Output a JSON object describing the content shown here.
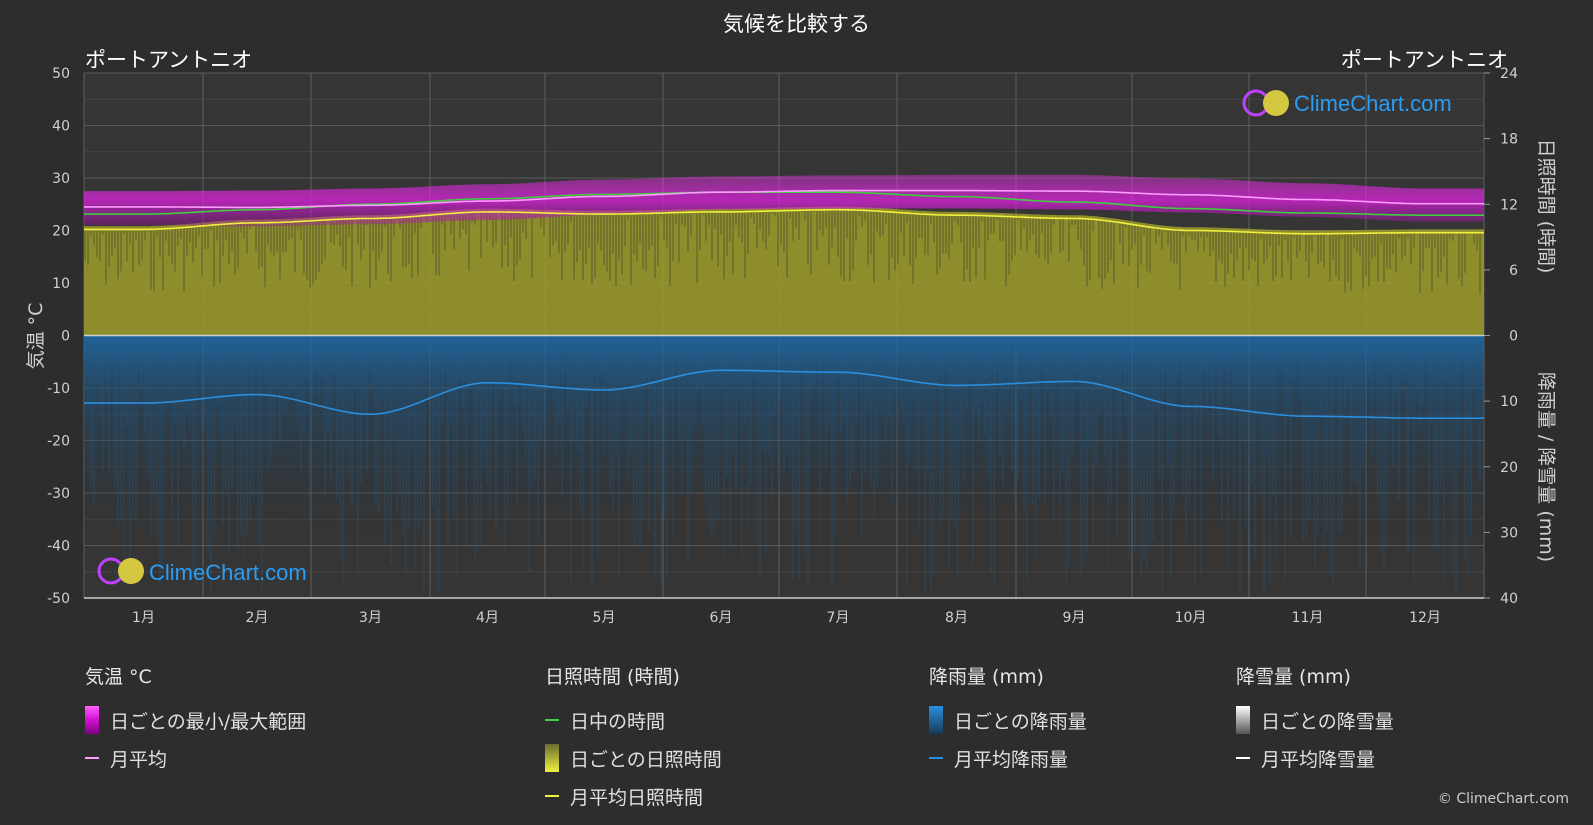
{
  "title": "気候を比較する",
  "location_left": "ポートアントニオ",
  "location_right": "ポートアントニオ",
  "watermark": "ClimeChart.com",
  "copyright": "© ClimeChart.com",
  "axes": {
    "left_label": "気温 °C",
    "right_top_label": "日照時間 (時間)",
    "right_bottom_label": "降雨量 / 降雪量 (mm)",
    "left_ticks": [
      50,
      40,
      30,
      20,
      10,
      0,
      -10,
      -20,
      -30,
      -40,
      -50
    ],
    "right_sun_ticks": [
      24,
      18,
      12,
      6,
      0
    ],
    "right_rain_ticks": [
      0,
      10,
      20,
      30,
      40
    ],
    "months": [
      "1月",
      "2月",
      "3月",
      "4月",
      "5月",
      "6月",
      "7月",
      "8月",
      "9月",
      "10月",
      "11月",
      "12月"
    ]
  },
  "legend": {
    "temperature": {
      "header": "気温 °C",
      "range": "日ごとの最小/最大範囲",
      "avg": "月平均"
    },
    "sunshine": {
      "header": "日照時間 (時間)",
      "daylight": "日中の時間",
      "daily": "日ごとの日照時間",
      "avg": "月平均日照時間"
    },
    "rain": {
      "header": "降雨量 (mm)",
      "daily": "日ごとの降雨量",
      "avg": "月平均降雨量"
    },
    "snow": {
      "header": "降雪量 (mm)",
      "daily": "日ごとの降雪量",
      "avg": "月平均降雪量"
    }
  },
  "colors": {
    "background": "#2d2d2d",
    "temp_range": "#e020e0",
    "temp_avg": "#ff9cff",
    "daylight": "#3ecf3e",
    "sunshine_fill": "#9c9c2a",
    "sunshine_avg": "#f0f040",
    "rain_fill": "#1e6aa8",
    "rain_avg": "#2a8fe0",
    "snow": "#ffffff"
  },
  "chart_data": {
    "type": "area",
    "months": [
      "1月",
      "2月",
      "3月",
      "4月",
      "5月",
      "6月",
      "7月",
      "8月",
      "9月",
      "10月",
      "11月",
      "12月"
    ],
    "ylim_temperature": [
      -50,
      50
    ],
    "ylim_sunshine_hours": [
      0,
      24
    ],
    "ylim_rain_mm": [
      0,
      40
    ],
    "grid": true,
    "series": [
      {
        "name": "月平均",
        "unit": "°C",
        "values": [
          24.5,
          24.4,
          24.8,
          25.6,
          26.5,
          27.3,
          27.6,
          27.6,
          27.5,
          26.8,
          25.9,
          25.1
        ]
      },
      {
        "name": "日ごとの最小/最大範囲 (最小)",
        "unit": "°C",
        "values": [
          21.0,
          20.8,
          21.2,
          22.0,
          23.0,
          24.0,
          24.2,
          24.2,
          24.0,
          23.4,
          22.6,
          21.7
        ]
      },
      {
        "name": "日ごとの最小/最大範囲 (最大)",
        "unit": "°C",
        "values": [
          27.5,
          27.6,
          28.0,
          28.8,
          29.7,
          30.3,
          30.5,
          30.6,
          30.6,
          29.9,
          29.0,
          28.0
        ]
      },
      {
        "name": "日中の時間",
        "unit": "時間",
        "values": [
          11.1,
          11.5,
          12.0,
          12.5,
          12.9,
          13.1,
          13.1,
          12.7,
          12.2,
          11.6,
          11.2,
          11.0
        ]
      },
      {
        "name": "月平均日照時間",
        "unit": "時間",
        "values": [
          9.7,
          10.3,
          10.7,
          11.3,
          11.1,
          11.3,
          11.5,
          11.0,
          10.7,
          9.6,
          9.3,
          9.4
        ]
      },
      {
        "name": "月平均降雨量",
        "unit": "mm",
        "values": [
          10.3,
          9.0,
          12.0,
          7.2,
          8.3,
          5.3,
          5.6,
          7.6,
          7.0,
          10.8,
          12.3,
          12.6
        ]
      },
      {
        "name": "月平均降雪量",
        "unit": "mm",
        "values": [
          0,
          0,
          0,
          0,
          0,
          0,
          0,
          0,
          0,
          0,
          0,
          0
        ]
      }
    ]
  }
}
